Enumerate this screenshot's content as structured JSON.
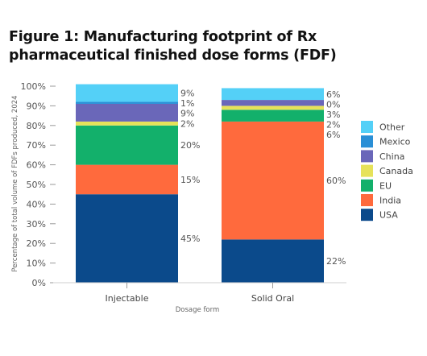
{
  "title": "Figure 1: Manufacturing footprint of Rx pharmaceutical finished dose forms (FDF)",
  "chart_data": {
    "type": "bar",
    "stacked": true,
    "categories": [
      "Injectable",
      "Solid Oral"
    ],
    "series": [
      {
        "name": "USA",
        "color": "#0b4a8b",
        "values": [
          45,
          22
        ]
      },
      {
        "name": "India",
        "color": "#ff6a3d",
        "values": [
          15,
          60
        ]
      },
      {
        "name": "EU",
        "color": "#13b06b",
        "values": [
          20,
          6
        ]
      },
      {
        "name": "Canada",
        "color": "#e6e25a",
        "values": [
          2,
          2
        ]
      },
      {
        "name": "China",
        "color": "#6a67b9",
        "values": [
          9,
          3
        ]
      },
      {
        "name": "Mexico",
        "color": "#2a8fd6",
        "values": [
          1,
          0
        ]
      },
      {
        "name": "Other",
        "color": "#54d0f7",
        "values": [
          9,
          6
        ]
      }
    ],
    "data_labels": {
      "Injectable": [
        "45%",
        "15%",
        "20%",
        "2%",
        "9%",
        "1%",
        "9%"
      ],
      "Solid Oral": [
        "22%",
        "60%",
        "6%",
        "2%",
        "3%",
        "0%",
        "6%"
      ]
    },
    "yticks": [
      "0%",
      "10%",
      "20%",
      "30%",
      "40%",
      "50%",
      "60%",
      "70%",
      "80%",
      "90%",
      "100%"
    ],
    "ylim": [
      0,
      100
    ],
    "ylabel": "Percentage of total volume of FDFs produced, 2024",
    "xlabel": "Dosage form",
    "legend_position": "right",
    "legend_order": [
      "Other",
      "Mexico",
      "China",
      "Canada",
      "EU",
      "India",
      "USA"
    ]
  }
}
